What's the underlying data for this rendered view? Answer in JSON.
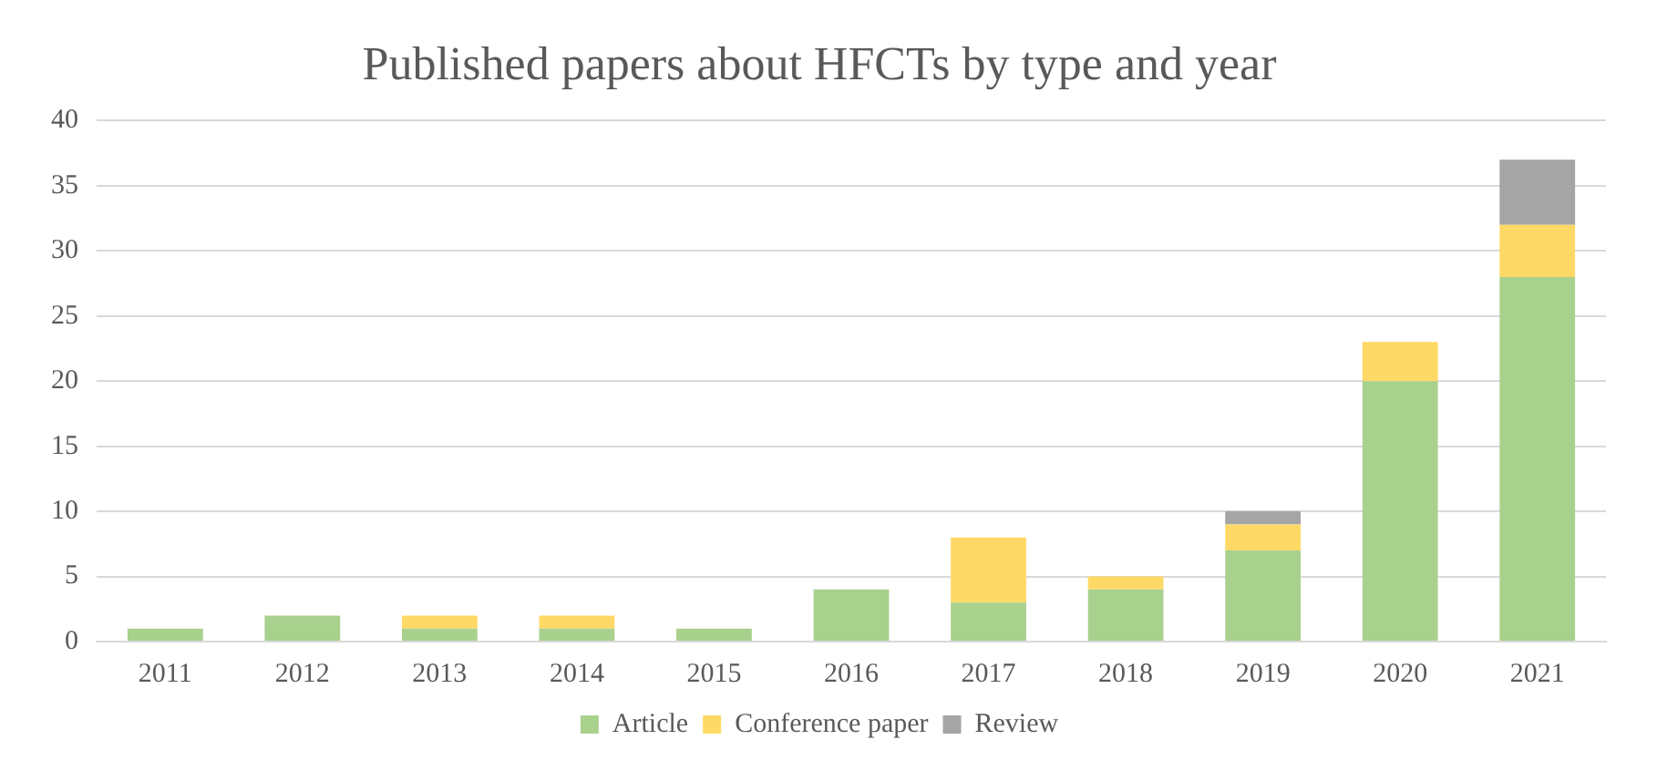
{
  "chart_data": {
    "type": "bar",
    "title": "Published papers about HFCTs by type and year",
    "categories": [
      "2011",
      "2012",
      "2013",
      "2014",
      "2015",
      "2016",
      "2017",
      "2018",
      "2019",
      "2020",
      "2021"
    ],
    "stacked": true,
    "ylim": [
      0,
      40
    ],
    "yticks": [
      0,
      5,
      10,
      15,
      20,
      25,
      30,
      35,
      40
    ],
    "grid": "y",
    "legend": "bottom",
    "series": [
      {
        "name": "Article",
        "color": "#a9d18e",
        "values": [
          1,
          2,
          1,
          1,
          1,
          4,
          3,
          4,
          7,
          20,
          28
        ]
      },
      {
        "name": "Conference paper",
        "color": "#ffd966",
        "values": [
          0,
          0,
          1,
          1,
          0,
          0,
          5,
          1,
          2,
          3,
          4
        ]
      },
      {
        "name": "Review",
        "color": "#a5a5a5",
        "values": [
          0,
          0,
          0,
          0,
          0,
          0,
          0,
          0,
          1,
          0,
          5
        ]
      }
    ]
  }
}
